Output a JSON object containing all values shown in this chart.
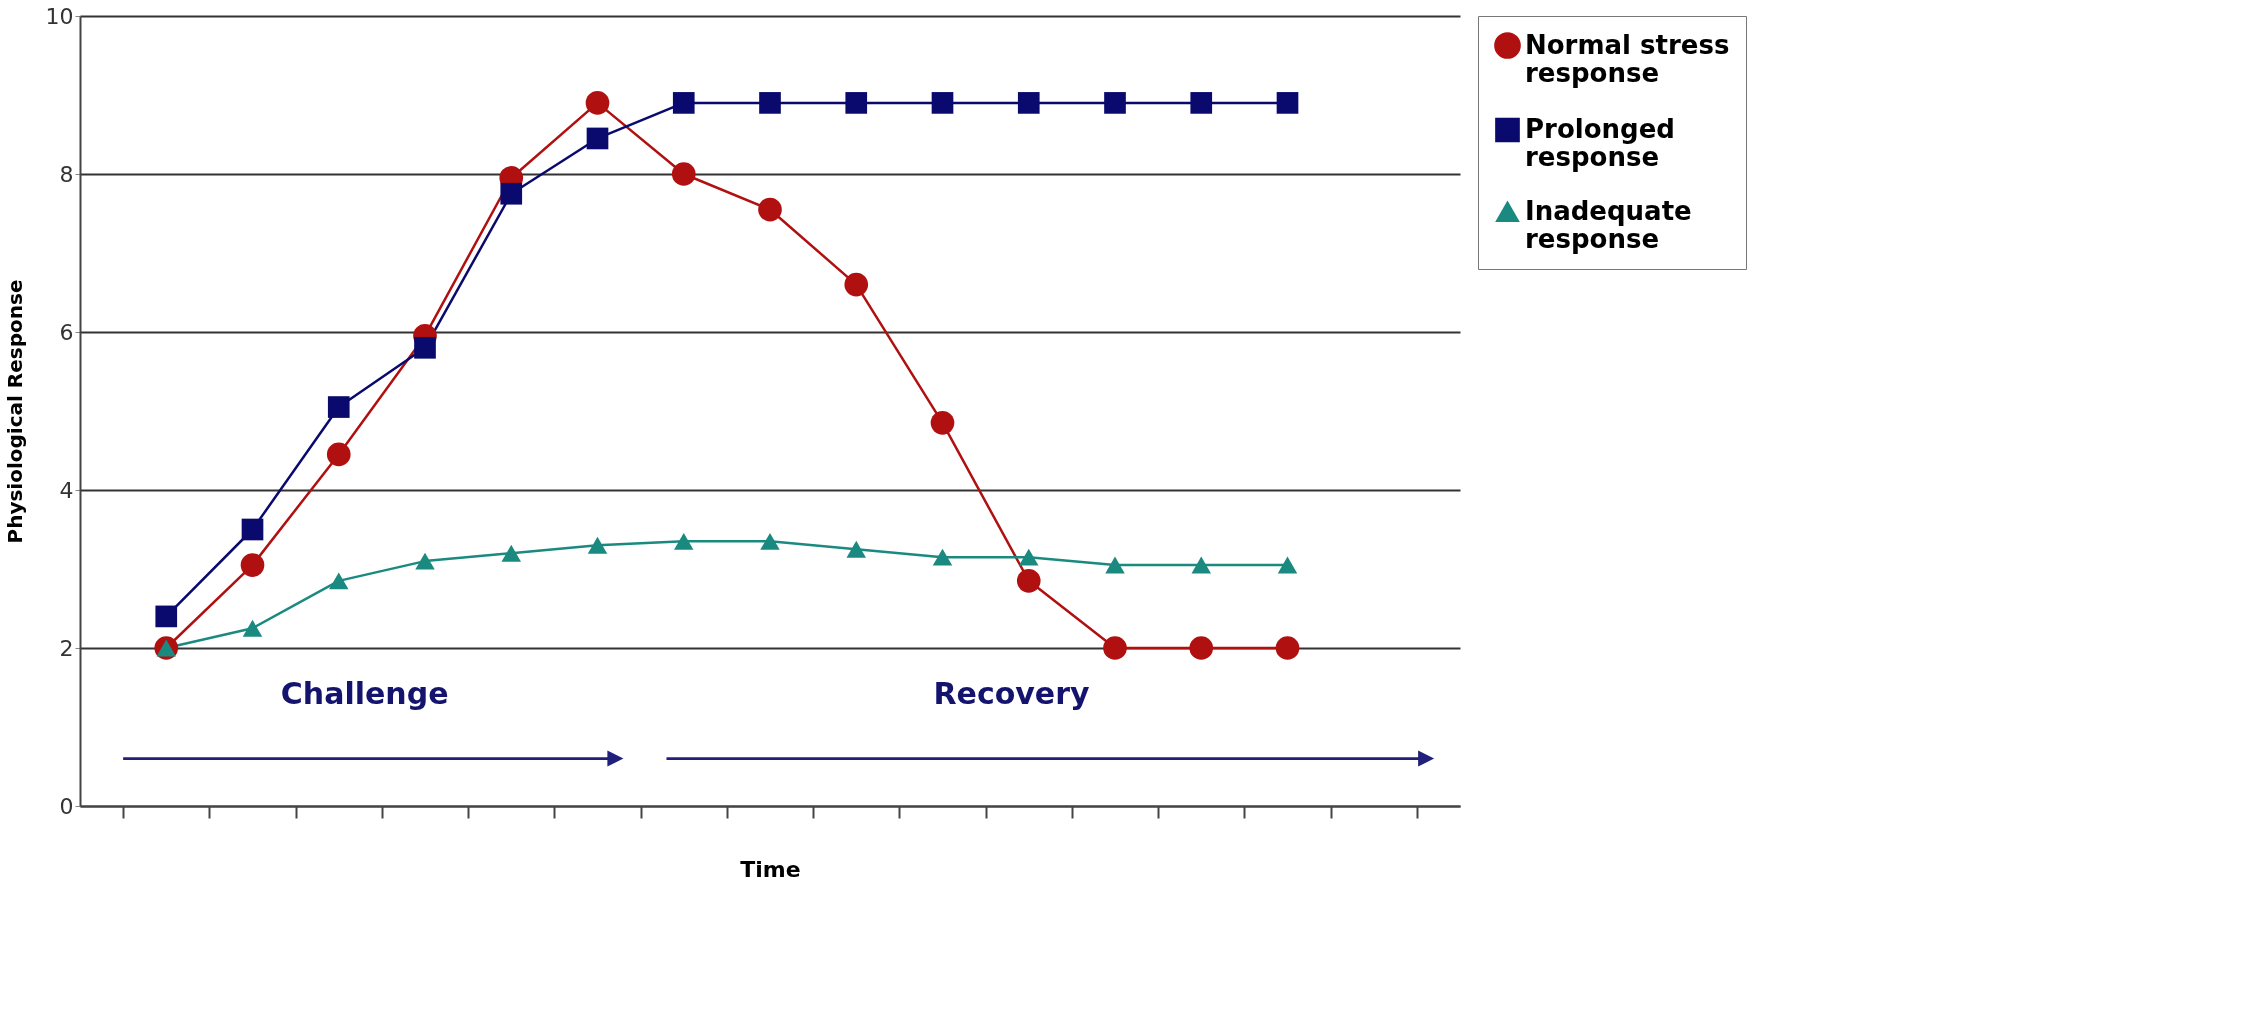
{
  "chart_data": {
    "type": "line",
    "xlabel": "Time",
    "ylabel": "Physiological Response",
    "categories": [
      null,
      null,
      null,
      null,
      null,
      null,
      null,
      null,
      null,
      null,
      null,
      null,
      null,
      null
    ],
    "series": [
      {
        "name": "Normal stress response",
        "color": "#b01010",
        "marker": "circle",
        "values": [
          2,
          3.05,
          4.45,
          5.95,
          7.95,
          8.9,
          8.0,
          7.55,
          6.6,
          4.85,
          2.85,
          2,
          2,
          2
        ]
      },
      {
        "name": "Prolonged response",
        "color": "#0a0a6e",
        "marker": "square",
        "values": [
          2.4,
          3.5,
          5.05,
          5.8,
          7.75,
          8.45,
          8.9,
          8.9,
          8.9,
          8.9,
          8.9,
          8.9,
          8.9,
          8.9
        ]
      },
      {
        "name": "Inadequate response",
        "color": "#1a8a80",
        "marker": "triangle",
        "values": [
          2,
          2.25,
          2.85,
          3.1,
          3.2,
          3.3,
          3.35,
          3.35,
          3.25,
          3.15,
          3.15,
          3.05,
          3.05,
          3.05
        ]
      }
    ],
    "annotations": [
      "Challenge",
      "Recovery"
    ],
    "ylim": [
      0,
      10
    ],
    "yticks": [
      0,
      2,
      4,
      6,
      8,
      10
    ],
    "grid": "y",
    "legend": "right"
  }
}
